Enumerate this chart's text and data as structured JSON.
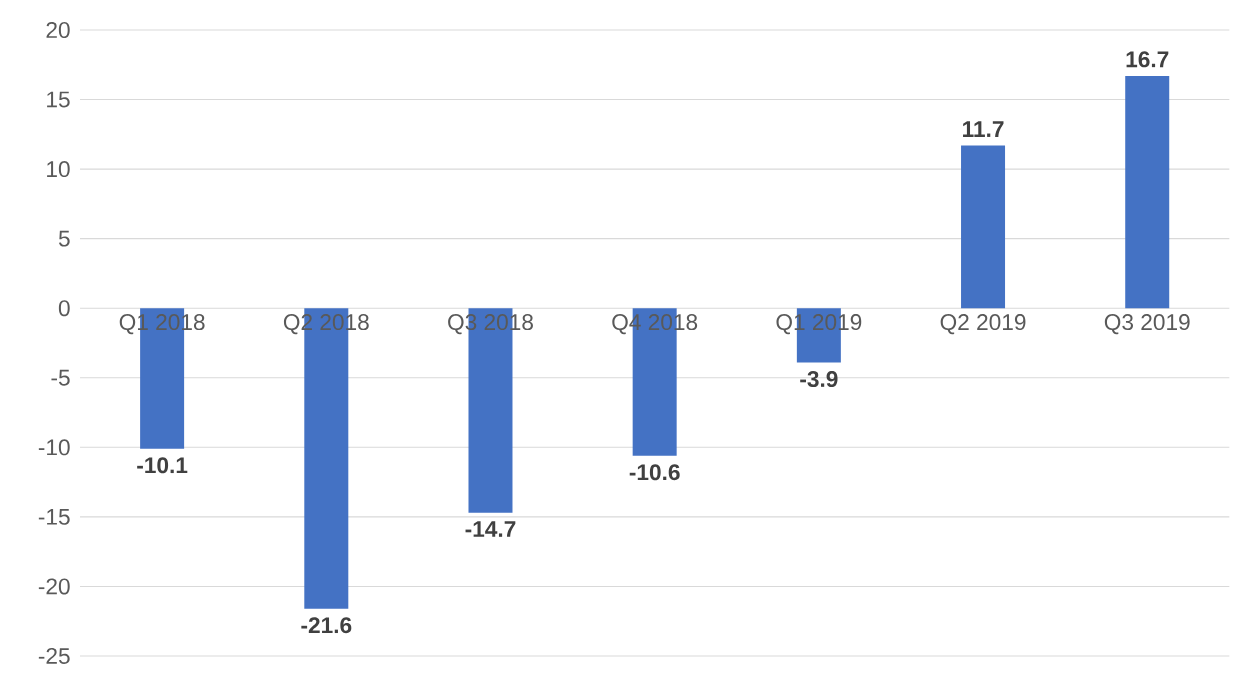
{
  "chart_data": {
    "type": "bar",
    "categories": [
      "Q1 2018",
      "Q2 2018",
      "Q3 2018",
      "Q4 2018",
      "Q1 2019",
      "Q2 2019",
      "Q3 2019"
    ],
    "values": [
      -10.1,
      -21.6,
      -14.7,
      -10.6,
      -3.9,
      11.7,
      16.7
    ],
    "color": "#4472c4",
    "ylim": [
      -25,
      20
    ],
    "yticks": [
      -25,
      -20,
      -15,
      -10,
      -5,
      0,
      5,
      10,
      15,
      20
    ],
    "grid": "y",
    "data_labels": true
  }
}
